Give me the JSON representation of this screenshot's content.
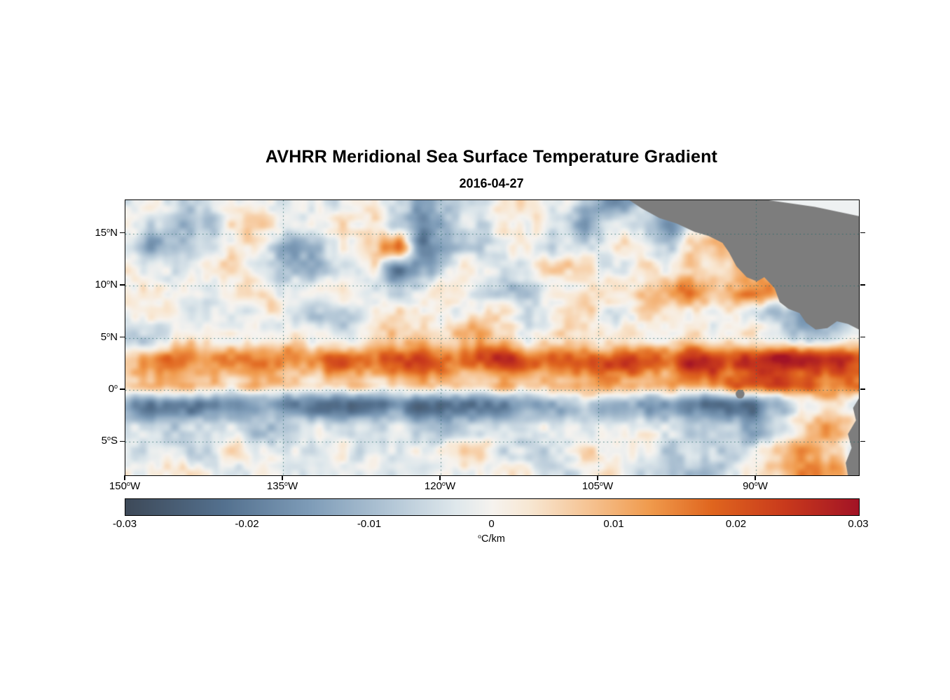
{
  "title": "AVHRR Meridional Sea Surface Temperature Gradient",
  "subtitle": "2016-04-27",
  "axes": {
    "y_ticks": [
      {
        "label": "15^oN",
        "lat": 15
      },
      {
        "label": "10^oN",
        "lat": 10
      },
      {
        "label": "5^oN",
        "lat": 5
      },
      {
        "label": "0^o",
        "lat": 0
      },
      {
        "label": "5^oS",
        "lat": -5
      }
    ],
    "x_ticks": [
      {
        "label": "150^oW",
        "lon": -150
      },
      {
        "label": "135^oW",
        "lon": -135
      },
      {
        "label": "120^oW",
        "lon": -120
      },
      {
        "label": "105^oW",
        "lon": -105
      },
      {
        "label": "90^oW",
        "lon": -90
      }
    ]
  },
  "colorbar": {
    "ticks": [
      "-0.03",
      "-0.02",
      "-0.01",
      "0",
      "0.01",
      "0.02",
      "0.03"
    ],
    "unit_label": "^oC/km"
  },
  "chart_data": {
    "type": "heatmap",
    "title": "AVHRR Meridional Sea Surface Temperature Gradient",
    "date": "2016-04-27",
    "units": "°C/km",
    "lon_range": [
      -150,
      -80.2
    ],
    "lat_range": [
      18.2,
      -8.2
    ],
    "lon_ticks": [
      -150,
      -135,
      -120,
      -105,
      -90
    ],
    "lat_ticks": [
      15,
      10,
      5,
      0,
      -5
    ],
    "value_range": [
      -0.03,
      0.03
    ],
    "value_ticks": [
      -0.03,
      -0.02,
      -0.01,
      0,
      0.01,
      0.02,
      0.03
    ],
    "colormap": [
      {
        "v": -0.03,
        "c": "#3e4a59"
      },
      {
        "v": -0.022,
        "c": "#54718f"
      },
      {
        "v": -0.015,
        "c": "#7e9cb8"
      },
      {
        "v": -0.008,
        "c": "#b6c9d8"
      },
      {
        "v": -0.003,
        "c": "#dfe8ec"
      },
      {
        "v": 0.0,
        "c": "#f6f3ef"
      },
      {
        "v": 0.003,
        "c": "#f8e8d4"
      },
      {
        "v": 0.008,
        "c": "#f6c392"
      },
      {
        "v": 0.013,
        "c": "#f09a4c"
      },
      {
        "v": 0.018,
        "c": "#e0661f"
      },
      {
        "v": 0.024,
        "c": "#c93a1c"
      },
      {
        "v": 0.03,
        "c": "#a31426"
      }
    ],
    "grid": {
      "scale": 0.001,
      "values": [
        [
          -2,
          1,
          -4,
          -2,
          2,
          1,
          -3,
          -6,
          -2,
          3,
          -8,
          -14,
          -12,
          -6,
          2,
          3,
          -2,
          -10,
          -14,
          -8,
          -12,
          -6,
          2,
          4,
          0,
          -2,
          1,
          2
        ],
        [
          -3,
          -8,
          -12,
          -6,
          2,
          4,
          -2,
          -4,
          3,
          2,
          -6,
          -16,
          -10,
          -3,
          4,
          2,
          -8,
          -12,
          -6,
          -10,
          -14,
          -4,
          3,
          6,
          2,
          -4,
          -6,
          -2
        ],
        [
          -4,
          -12,
          -8,
          -2,
          3,
          -4,
          -14,
          -8,
          2,
          6,
          18,
          -18,
          -12,
          -4,
          2,
          -2,
          -6,
          -3,
          2,
          -2,
          -6,
          3,
          10,
          8,
          -6,
          -10,
          -4,
          2
        ],
        [
          2,
          -4,
          -6,
          2,
          4,
          -2,
          -6,
          -8,
          -3,
          4,
          -20,
          -10,
          -2,
          3,
          -2,
          2,
          4,
          2,
          -2,
          3,
          2,
          4,
          6,
          12,
          4,
          -6,
          -8,
          -3
        ],
        [
          1,
          3,
          -2,
          -4,
          2,
          3,
          -2,
          2,
          4,
          -3,
          -6,
          2,
          3,
          -2,
          -10,
          -4,
          3,
          6,
          4,
          8,
          12,
          14,
          10,
          16,
          12,
          4,
          -4,
          -6
        ],
        [
          -2,
          2,
          3,
          -2,
          -4,
          2,
          -2,
          -6,
          -8,
          -3,
          2,
          4,
          -2,
          3,
          2,
          -3,
          2,
          3,
          -2,
          2,
          4,
          3,
          2,
          -3,
          -8,
          -14,
          -10,
          -4
        ],
        [
          -8,
          -4,
          2,
          3,
          -2,
          2,
          3,
          2,
          -2,
          3,
          6,
          8,
          6,
          8,
          4,
          2,
          3,
          4,
          6,
          4,
          3,
          6,
          4,
          2,
          -4,
          -8,
          -6,
          3
        ],
        [
          10,
          14,
          16,
          14,
          18,
          16,
          14,
          18,
          20,
          16,
          20,
          22,
          18,
          22,
          25,
          20,
          18,
          22,
          20,
          24,
          22,
          26,
          24,
          28,
          30,
          28,
          26,
          22
        ],
        [
          6,
          8,
          9,
          8,
          6,
          9,
          8,
          6,
          9,
          8,
          6,
          8,
          9,
          8,
          10,
          9,
          8,
          10,
          9,
          12,
          10,
          14,
          16,
          22,
          24,
          18,
          12,
          16
        ],
        [
          -16,
          -20,
          -18,
          -22,
          -20,
          -18,
          -22,
          -20,
          -24,
          -22,
          -20,
          -24,
          -22,
          -20,
          -18,
          -14,
          -10,
          -8,
          -10,
          -12,
          -18,
          -22,
          -24,
          -20,
          -16,
          -6,
          2,
          -4
        ],
        [
          -4,
          -6,
          -8,
          -4,
          -6,
          -8,
          -6,
          -4,
          -8,
          -6,
          -4,
          -6,
          -8,
          -6,
          -4,
          -2,
          -3,
          -2,
          -4,
          -3,
          -6,
          -8,
          -10,
          -14,
          -8,
          4,
          10,
          6
        ],
        [
          -6,
          -4,
          -4,
          -2,
          3,
          -4,
          -6,
          -3,
          2,
          -3,
          -4,
          -2,
          3,
          2,
          -2,
          -4,
          -2,
          2,
          -3,
          -2,
          -4,
          -8,
          -10,
          -6,
          4,
          12,
          8,
          -2
        ],
        [
          -2,
          2,
          3,
          -2,
          -4,
          2,
          -2,
          -4,
          2,
          3,
          -6,
          -4,
          -2,
          3,
          2,
          -2,
          -4,
          -2,
          2,
          -4,
          -6,
          -8,
          -4,
          2,
          8,
          14,
          10,
          4
        ]
      ]
    },
    "noise": {
      "seed": 20160427,
      "octaves": [
        {
          "nx": 36,
          "ny": 14,
          "amp": 0.0045
        },
        {
          "nx": 92,
          "ny": 36,
          "amp": 0.0032
        }
      ]
    },
    "gridlines": {
      "color": "rgba(40,105,105,0.85)",
      "dash": [
        1.5,
        4
      ],
      "lats": [
        15,
        10,
        5,
        0,
        -5
      ],
      "lons": [
        -135,
        -120,
        -105,
        -90
      ]
    },
    "land": {
      "color": "#7d7d7d",
      "overlays": [
        {
          "shape": "polygon",
          "color": "#7d7d7d",
          "points": [
            [
              0.687,
              0
            ],
            [
              0.704,
              0.03
            ],
            [
              0.728,
              0.065
            ],
            [
              0.752,
              0.085
            ],
            [
              0.776,
              0.115
            ],
            [
              0.795,
              0.13
            ],
            [
              0.814,
              0.155
            ],
            [
              0.823,
              0.19
            ],
            [
              0.833,
              0.24
            ],
            [
              0.847,
              0.28
            ],
            [
              0.861,
              0.295
            ],
            [
              0.871,
              0.28
            ],
            [
              0.885,
              0.32
            ],
            [
              0.892,
              0.37
            ],
            [
              0.904,
              0.395
            ],
            [
              0.919,
              0.41
            ],
            [
              0.928,
              0.445
            ],
            [
              0.941,
              0.47
            ],
            [
              0.957,
              0.465
            ],
            [
              0.97,
              0.44
            ],
            [
              0.985,
              0.45
            ],
            [
              1.0,
              0.47
            ],
            [
              1.0,
              0
            ]
          ]
        },
        {
          "shape": "polygon",
          "color": "#eef1f2",
          "points": [
            [
              0.877,
              0
            ],
            [
              1.0,
              0
            ],
            [
              1.0,
              0.058
            ],
            [
              0.94,
              0.024
            ]
          ]
        },
        {
          "shape": "polygon",
          "color": "#7d7d7d",
          "points": [
            [
              1.0,
              0.72
            ],
            [
              0.992,
              0.755
            ],
            [
              0.996,
              0.8
            ],
            [
              0.985,
              0.85
            ],
            [
              0.99,
              0.9
            ],
            [
              0.982,
              0.955
            ],
            [
              0.985,
              1.0
            ],
            [
              1.0,
              1.0
            ]
          ]
        },
        {
          "shape": "circle",
          "color": "#7d7d7d",
          "cx": 0.838,
          "cy": 0.705,
          "r": 0.006
        }
      ]
    }
  }
}
